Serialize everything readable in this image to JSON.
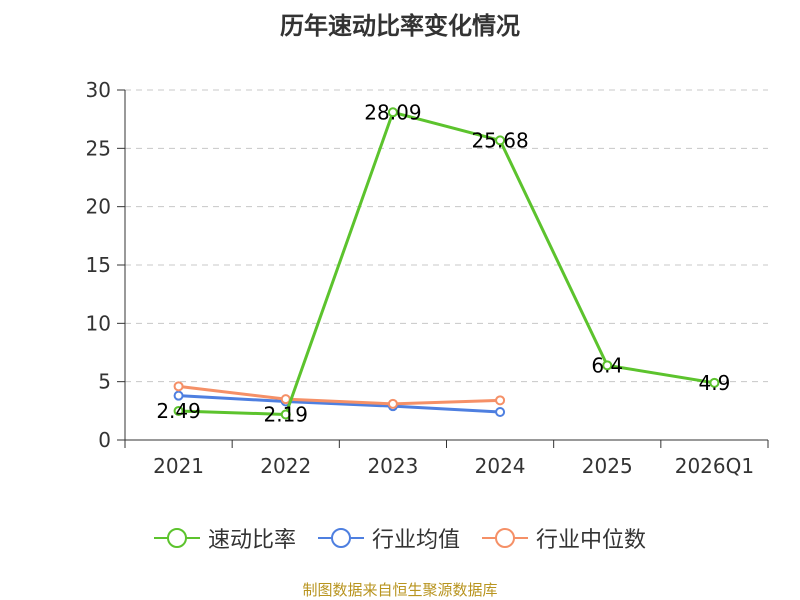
{
  "title": "历年速动比率变化情况",
  "source": "制图数据来自恒生聚源数据库",
  "chart_data": {
    "type": "line",
    "title": "历年速动比率变化情况",
    "categories": [
      "2021",
      "2022",
      "2023",
      "2024",
      "2025",
      "2026Q1"
    ],
    "ylim": [
      0,
      30
    ],
    "yticks": [
      0,
      5,
      10,
      15,
      20,
      25,
      30
    ],
    "grid": true,
    "legend_position": "bottom",
    "series": [
      {
        "name": "速动比率",
        "color": "#5cc32d",
        "values": [
          2.49,
          2.19,
          28.09,
          25.68,
          6.4,
          4.9
        ],
        "labels": [
          "2.49",
          "2.19",
          "28.09",
          "25.68",
          "6.4",
          "4.9"
        ]
      },
      {
        "name": "行业均值",
        "color": "#4e7fe0",
        "values": [
          3.8,
          3.3,
          2.9,
          2.4,
          null,
          null
        ]
      },
      {
        "name": "行业中位数",
        "color": "#f59067",
        "values": [
          4.6,
          3.5,
          3.1,
          3.4,
          null,
          null
        ]
      }
    ]
  }
}
